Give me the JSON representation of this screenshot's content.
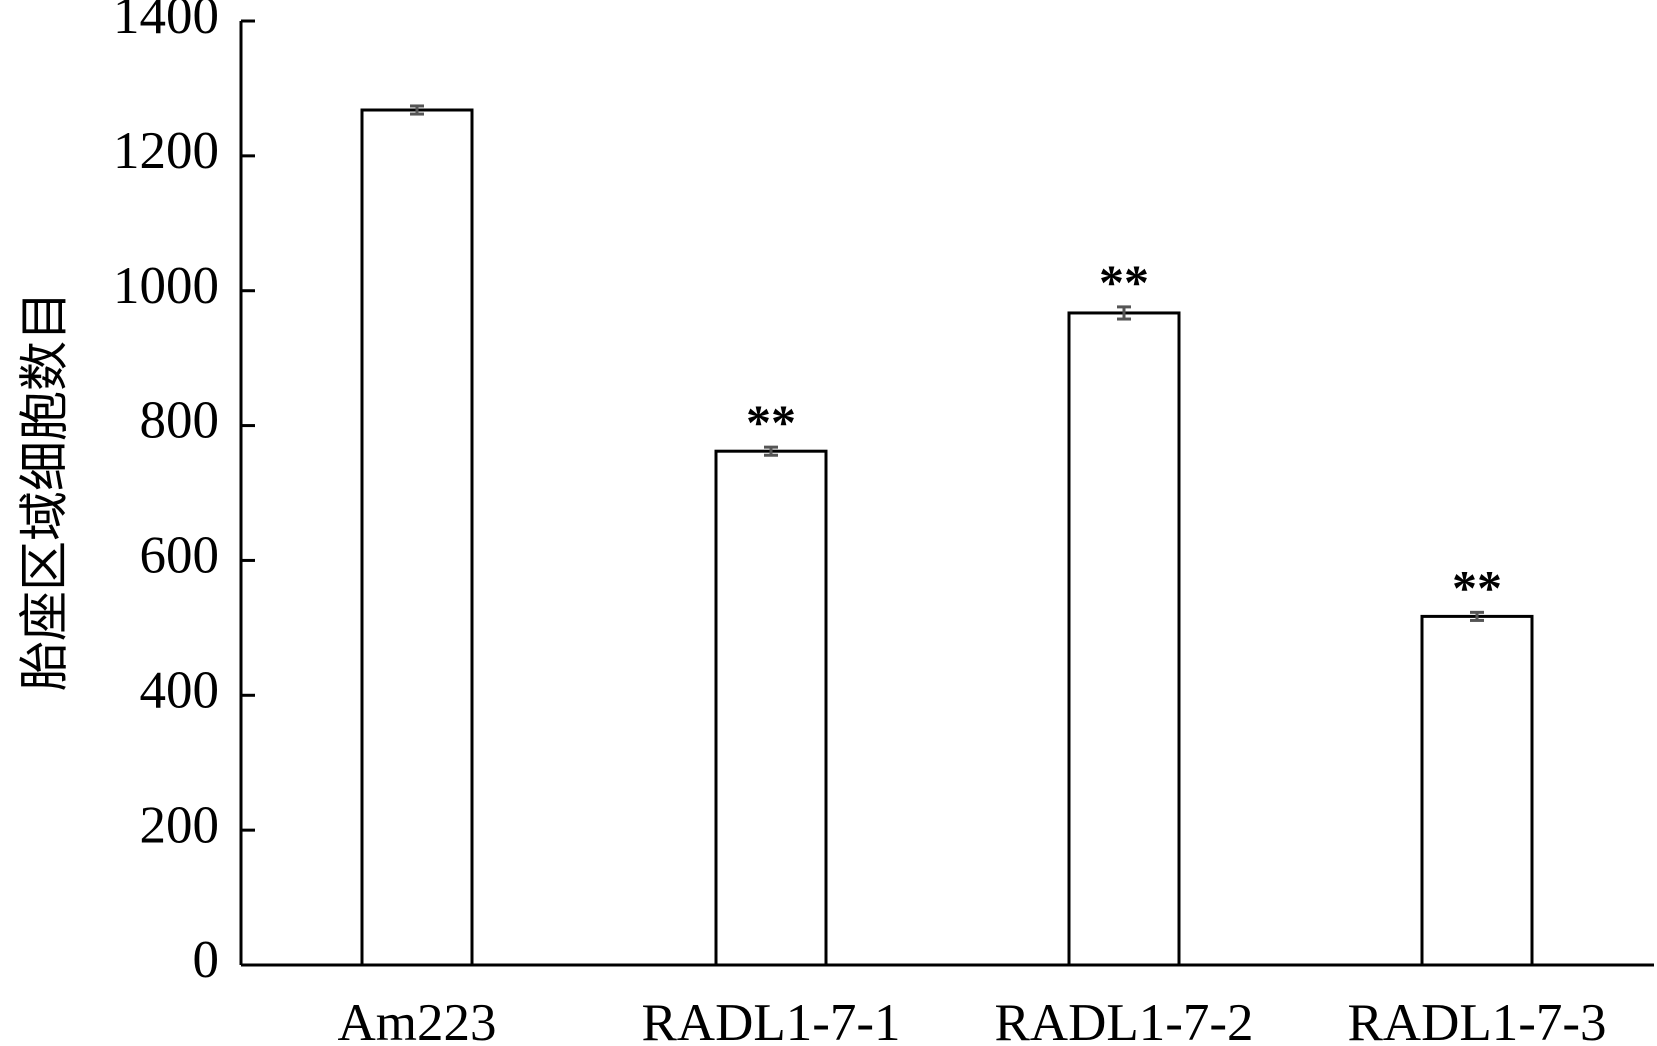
{
  "chart_data": {
    "type": "bar",
    "y_label": "胎座区域细胞数目",
    "categories": [
      "Am223",
      "RADL1-7-1",
      "RADL1-7-2",
      "RADL1-7-3"
    ],
    "values": [
      1268,
      762,
      967,
      517
    ],
    "errors": [
      6,
      6,
      9,
      6
    ],
    "significance": [
      null,
      "**",
      "**",
      "**"
    ],
    "color": "#ffffff",
    "edge_color": "#000000",
    "error_color": "#555555",
    "ylim": [
      0,
      1400
    ],
    "yticks": [
      0,
      200,
      400,
      600,
      800,
      1000,
      1200,
      1400
    ],
    "grid": false
  }
}
